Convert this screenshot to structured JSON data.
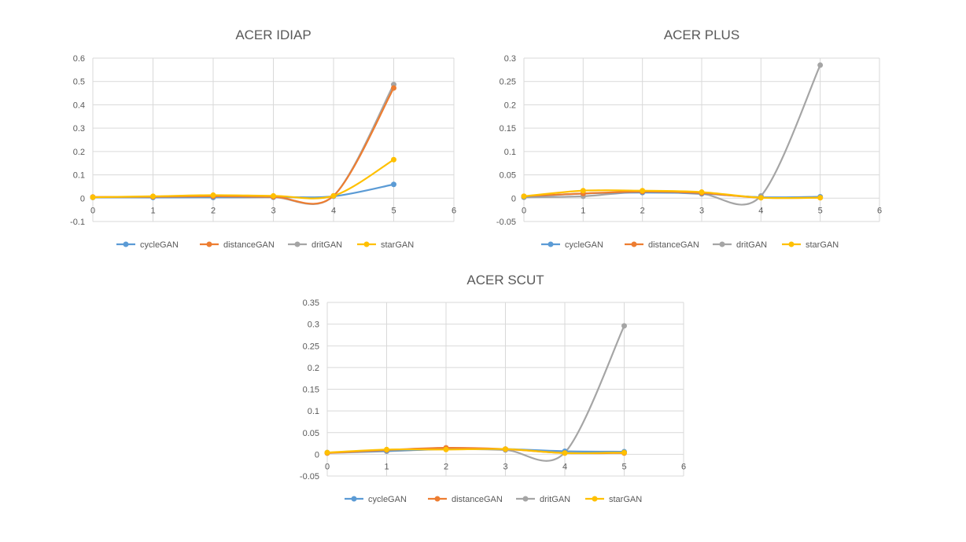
{
  "colors": {
    "cycleGAN": "#5b9bd5",
    "distanceGAN": "#ed7d31",
    "dritGAN": "#a5a5a5",
    "starGAN": "#ffc000",
    "grid": "#d9d9d9",
    "text": "#595959"
  },
  "legend_position": "bottom",
  "chart_data": [
    {
      "type": "line",
      "title": "ACER IDIAP",
      "xlabel": "",
      "ylabel": "",
      "xlim": [
        0,
        6
      ],
      "ylim": [
        -0.1,
        0.6
      ],
      "x_ticks": [
        "0",
        "1",
        "2",
        "3",
        "4",
        "5",
        "6"
      ],
      "y_ticks": [
        "0.6",
        "0.5",
        "0.4",
        "0.3",
        "0.2",
        "0.1",
        "0",
        "-0.1"
      ],
      "grid": true,
      "smooth": true,
      "x": [
        0,
        1,
        2,
        3,
        4,
        5
      ],
      "series": [
        {
          "name": "cycleGAN",
          "values": [
            0.004,
            0.003,
            0.004,
            0.005,
            0.008,
            0.059
          ]
        },
        {
          "name": "distanceGAN",
          "values": [
            0.005,
            0.006,
            0.008,
            0.006,
            0.01,
            0.472
          ]
        },
        {
          "name": "dritGAN",
          "values": [
            0.003,
            0.004,
            0.003,
            0.004,
            0.01,
            0.487
          ]
        },
        {
          "name": "starGAN",
          "values": [
            0.004,
            0.008,
            0.013,
            0.01,
            0.01,
            0.165
          ]
        }
      ]
    },
    {
      "type": "line",
      "title": "ACER PLUS",
      "xlabel": "",
      "ylabel": "",
      "xlim": [
        0,
        6
      ],
      "ylim": [
        -0.05,
        0.3
      ],
      "x_ticks": [
        "0",
        "1",
        "2",
        "3",
        "4",
        "5",
        "6"
      ],
      "y_ticks": [
        "0.3",
        "0.25",
        "0.2",
        "0.15",
        "0.1",
        "0.05",
        "0",
        "-0.05"
      ],
      "grid": true,
      "smooth": true,
      "x": [
        0,
        1,
        2,
        3,
        4,
        5
      ],
      "series": [
        {
          "name": "cycleGAN",
          "values": [
            0.003,
            0.01,
            0.012,
            0.01,
            0.002,
            0.003
          ]
        },
        {
          "name": "distanceGAN",
          "values": [
            0.004,
            0.01,
            0.014,
            0.011,
            0.001,
            0.001
          ]
        },
        {
          "name": "dritGAN",
          "values": [
            0.002,
            0.004,
            0.014,
            0.009,
            0.005,
            0.285
          ]
        },
        {
          "name": "starGAN",
          "values": [
            0.004,
            0.016,
            0.016,
            0.013,
            0.001,
            0.001
          ]
        }
      ]
    },
    {
      "type": "line",
      "title": "ACER SCUT",
      "xlabel": "",
      "ylabel": "",
      "xlim": [
        0,
        6
      ],
      "ylim": [
        -0.05,
        0.35
      ],
      "x_ticks": [
        "0",
        "1",
        "2",
        "3",
        "4",
        "5",
        "6"
      ],
      "y_ticks": [
        "0.35",
        "0.3",
        "0.25",
        "0.2",
        "0.15",
        "0.1",
        "0.05",
        "0",
        "-0.05"
      ],
      "grid": true,
      "smooth": true,
      "x": [
        0,
        1,
        2,
        3,
        4,
        5
      ],
      "series": [
        {
          "name": "cycleGAN",
          "values": [
            0.004,
            0.008,
            0.012,
            0.012,
            0.007,
            0.006
          ]
        },
        {
          "name": "distanceGAN",
          "values": [
            0.003,
            0.01,
            0.015,
            0.012,
            0.003,
            0.003
          ]
        },
        {
          "name": "dritGAN",
          "values": [
            0.003,
            0.007,
            0.012,
            0.01,
            0.004,
            0.296
          ]
        },
        {
          "name": "starGAN",
          "values": [
            0.004,
            0.011,
            0.011,
            0.012,
            0.003,
            0.004
          ]
        }
      ]
    }
  ]
}
